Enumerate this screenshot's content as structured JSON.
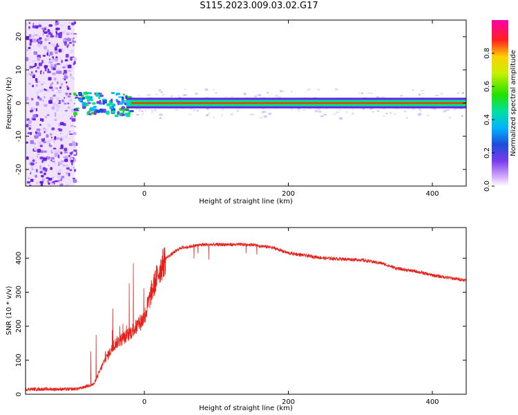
{
  "title": "S115.2023.009.03.02.G17",
  "chart_data": [
    {
      "type": "heatmap",
      "xlabel": "Height of straight line (km)",
      "ylabel": "Frequency (Hz)",
      "xlim": [
        -165,
        447
      ],
      "ylim": [
        -25,
        25
      ],
      "x_ticks": [
        0,
        200,
        400
      ],
      "y_ticks": [
        -20,
        -10,
        0,
        10,
        20
      ],
      "colorbar": {
        "label": "Normalized spectral amplitude",
        "range": [
          0,
          1
        ],
        "ticks": [
          "0.0",
          "0.2",
          "0.4",
          "0.6",
          "0.8"
        ]
      },
      "noise_region_x": [
        -165,
        -97
      ],
      "signal_center_freq_hz": 0,
      "peak_line_x": [
        -18,
        447
      ]
    },
    {
      "type": "line",
      "color": "#e8201a",
      "xlabel": "Height of straight line (km)",
      "ylabel": "SNR (10 * v/v)",
      "xlim": [
        -165,
        447
      ],
      "ylim": [
        0,
        490
      ],
      "x_ticks": [
        0,
        200,
        400
      ],
      "y_ticks": [
        0,
        100,
        200,
        300,
        400
      ],
      "x": [
        -165,
        -100,
        -90,
        -70,
        -55,
        -40,
        -25,
        -10,
        0,
        10,
        20,
        30,
        50,
        80,
        100,
        150,
        180,
        200,
        250,
        300,
        330,
        350,
        380,
        400,
        430,
        447
      ],
      "y": [
        15,
        15,
        17,
        30,
        100,
        150,
        170,
        200,
        225,
        300,
        360,
        400,
        430,
        440,
        440,
        440,
        430,
        415,
        400,
        395,
        385,
        370,
        360,
        350,
        340,
        335
      ]
    }
  ]
}
